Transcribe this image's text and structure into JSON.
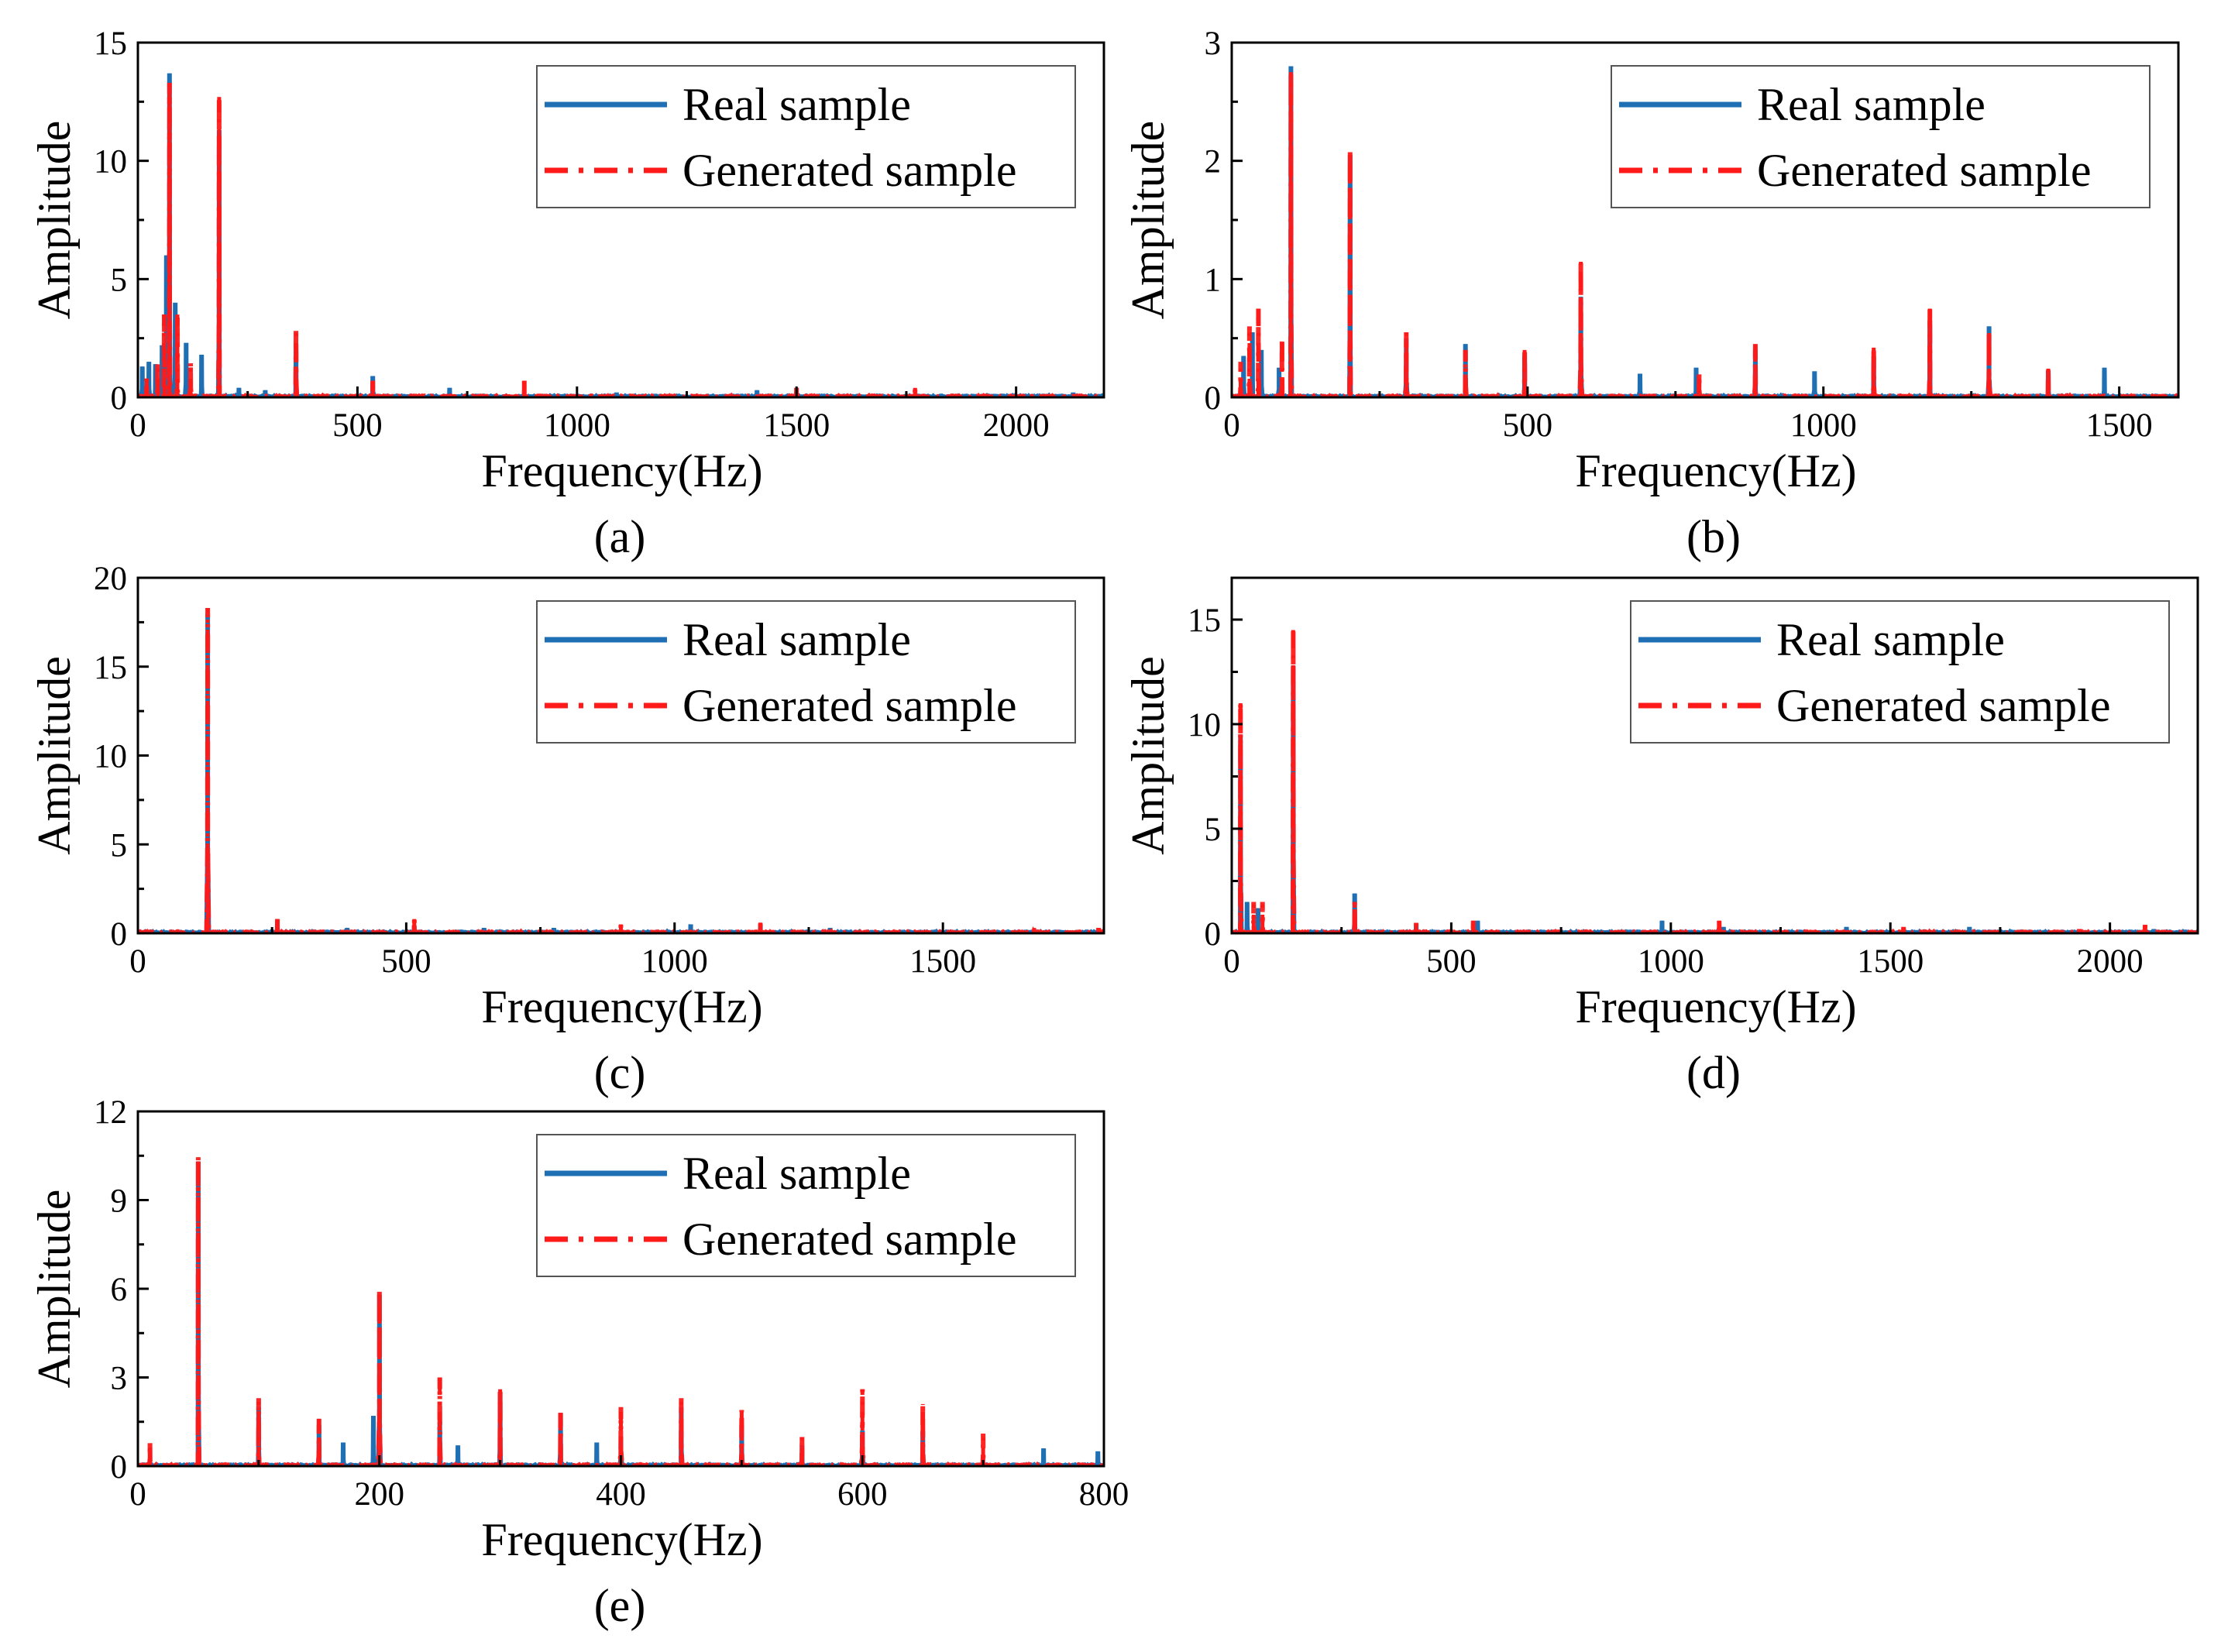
{
  "legend_labels": {
    "real": "Real sample",
    "generated": "Generated sample"
  },
  "colors": {
    "real": "#1f6fb4",
    "generated": "#ff1a1a",
    "axis": "#000000"
  },
  "chart_data": [
    {
      "panel": "(a)",
      "type": "line",
      "xlabel": "Frequency(Hz)",
      "ylabel": "Amplitude",
      "xlim": [
        0,
        2200
      ],
      "ylim": [
        0,
        15
      ],
      "xticks": [
        0,
        500,
        1000,
        1500,
        2000
      ],
      "yticks": [
        0,
        5,
        10,
        15
      ],
      "legend": "top-right",
      "grid": false,
      "series": [
        {
          "name": "Real sample",
          "peaks": [
            [
              10,
              1.3
            ],
            [
              25,
              1.5
            ],
            [
              40,
              1.4
            ],
            [
              55,
              2.2
            ],
            [
              65,
              6
            ],
            [
              72,
              13.7
            ],
            [
              85,
              4
            ],
            [
              110,
              2.3
            ],
            [
              145,
              1.8
            ],
            [
              185,
              11.3
            ],
            [
              230,
              0.4
            ],
            [
              290,
              0.3
            ],
            [
              360,
              2.0
            ],
            [
              535,
              0.9
            ],
            [
              710,
              0.4
            ],
            [
              1090,
              0.2
            ],
            [
              1410,
              0.3
            ],
            [
              2130,
              0.2
            ]
          ]
        },
        {
          "name": "Generated sample",
          "peaks": [
            [
              20,
              0.8
            ],
            [
              45,
              1.5
            ],
            [
              60,
              3.5
            ],
            [
              72,
              13.3
            ],
            [
              90,
              3.5
            ],
            [
              120,
              1.5
            ],
            [
              185,
              12.7
            ],
            [
              360,
              2.9
            ],
            [
              535,
              0.7
            ],
            [
              880,
              0.7
            ],
            [
              1500,
              0.4
            ],
            [
              1770,
              0.4
            ]
          ]
        }
      ]
    },
    {
      "panel": "(b)",
      "type": "line",
      "xlabel": "Frequency(Hz)",
      "ylabel": "Amplitude",
      "xlim": [
        0,
        1600
      ],
      "ylim": [
        0,
        3
      ],
      "xticks": [
        0,
        500,
        1000,
        1500
      ],
      "yticks": [
        0,
        1,
        2,
        3
      ],
      "legend": "top-right",
      "grid": false,
      "series": [
        {
          "name": "Real sample",
          "peaks": [
            [
              20,
              0.35
            ],
            [
              35,
              0.55
            ],
            [
              50,
              0.4
            ],
            [
              80,
              0.25
            ],
            [
              100,
              2.8
            ],
            [
              200,
              2.05
            ],
            [
              295,
              0.5
            ],
            [
              395,
              0.45
            ],
            [
              495,
              0.35
            ],
            [
              590,
              0.85
            ],
            [
              690,
              0.2
            ],
            [
              785,
              0.25
            ],
            [
              885,
              0.4
            ],
            [
              985,
              0.22
            ],
            [
              1085,
              0.35
            ],
            [
              1180,
              0.65
            ],
            [
              1280,
              0.6
            ],
            [
              1380,
              0.22
            ],
            [
              1475,
              0.25
            ]
          ]
        },
        {
          "name": "Generated sample",
          "peaks": [
            [
              15,
              0.3
            ],
            [
              30,
              0.6
            ],
            [
              45,
              0.75
            ],
            [
              85,
              0.5
            ],
            [
              100,
              2.75
            ],
            [
              200,
              2.1
            ],
            [
              295,
              0.55
            ],
            [
              395,
              0.4
            ],
            [
              495,
              0.4
            ],
            [
              590,
              1.15
            ],
            [
              790,
              0.2
            ],
            [
              885,
              0.45
            ],
            [
              1085,
              0.42
            ],
            [
              1180,
              0.75
            ],
            [
              1280,
              0.55
            ],
            [
              1380,
              0.25
            ]
          ]
        }
      ]
    },
    {
      "panel": "(c)",
      "type": "line",
      "xlabel": "Frequency(Hz)",
      "ylabel": "Amplitude",
      "xlim": [
        0,
        1800
      ],
      "ylim": [
        0,
        20
      ],
      "xticks": [
        0,
        500,
        1000,
        1500
      ],
      "yticks": [
        0,
        5,
        10,
        15,
        20
      ],
      "legend": "top-right",
      "grid": false,
      "series": [
        {
          "name": "Real sample",
          "peaks": [
            [
              130,
              18
            ],
            [
              260,
              0.7
            ],
            [
              390,
              0.3
            ],
            [
              515,
              0.4
            ],
            [
              645,
              0.3
            ],
            [
              775,
              0.3
            ],
            [
              1030,
              0.5
            ],
            [
              1160,
              0.4
            ],
            [
              1290,
              0.3
            ]
          ]
        },
        {
          "name": "Generated sample",
          "peaks": [
            [
              130,
              18.3
            ],
            [
              260,
              0.8
            ],
            [
              515,
              0.8
            ],
            [
              900,
              0.5
            ],
            [
              1160,
              0.6
            ],
            [
              1670,
              0.3
            ],
            [
              1790,
              0.3
            ]
          ]
        }
      ]
    },
    {
      "panel": "(d)",
      "type": "line",
      "xlabel": "Frequency(Hz)",
      "ylabel": "Amplitude",
      "xlim": [
        0,
        2200
      ],
      "ylim": [
        0,
        17
      ],
      "xticks": [
        0,
        500,
        1000,
        1500,
        2000
      ],
      "yticks": [
        0,
        5,
        10,
        15
      ],
      "legend": "top-right",
      "grid": false,
      "series": [
        {
          "name": "Real sample",
          "peaks": [
            [
              20,
              9.5
            ],
            [
              35,
              1.5
            ],
            [
              60,
              1.2
            ],
            [
              140,
              12.8
            ],
            [
              280,
              1.9
            ],
            [
              420,
              0.4
            ],
            [
              560,
              0.6
            ],
            [
              980,
              0.6
            ],
            [
              1120,
              0.3
            ],
            [
              1400,
              0.3
            ],
            [
              1680,
              0.3
            ],
            [
              2100,
              0.2
            ]
          ]
        },
        {
          "name": "Generated sample",
          "peaks": [
            [
              20,
              11
            ],
            [
              50,
              1.5
            ],
            [
              70,
              1.5
            ],
            [
              140,
              14.5
            ],
            [
              280,
              1.5
            ],
            [
              420,
              0.5
            ],
            [
              550,
              0.6
            ],
            [
              1110,
              0.6
            ],
            [
              1530,
              0.3
            ],
            [
              1930,
              0.2
            ],
            [
              2080,
              0.4
            ]
          ]
        }
      ]
    },
    {
      "panel": "(e)",
      "type": "line",
      "xlabel": "Frequency(Hz)",
      "ylabel": "Amplitude",
      "xlim": [
        0,
        800
      ],
      "ylim": [
        0,
        12
      ],
      "xticks": [
        0,
        200,
        400,
        600,
        800
      ],
      "yticks": [
        0,
        3,
        6,
        9,
        12
      ],
      "legend": "top-right",
      "grid": false,
      "series": [
        {
          "name": "Real sample",
          "peaks": [
            [
              50,
              10.3
            ],
            [
              100,
              2.0
            ],
            [
              150,
              1.4
            ],
            [
              170,
              0.8
            ],
            [
              195,
              1.7
            ],
            [
              200,
              5.8
            ],
            [
              250,
              1.5
            ],
            [
              265,
              0.7
            ],
            [
              300,
              2.5
            ],
            [
              350,
              1.8
            ],
            [
              380,
              0.8
            ],
            [
              400,
              1.0
            ],
            [
              450,
              2.0
            ],
            [
              500,
              1.4
            ],
            [
              550,
              0.7
            ],
            [
              600,
              1.2
            ],
            [
              650,
              1.2
            ],
            [
              750,
              0.6
            ],
            [
              795,
              0.5
            ]
          ]
        },
        {
          "name": "Generated sample",
          "peaks": [
            [
              10,
              0.8
            ],
            [
              50,
              10.5
            ],
            [
              100,
              2.3
            ],
            [
              150,
              1.6
            ],
            [
              200,
              6.0
            ],
            [
              250,
              3.0
            ],
            [
              300,
              2.6
            ],
            [
              350,
              1.8
            ],
            [
              400,
              2.0
            ],
            [
              450,
              2.3
            ],
            [
              500,
              1.9
            ],
            [
              550,
              1.0
            ],
            [
              600,
              2.6
            ],
            [
              650,
              2.1
            ],
            [
              700,
              1.1
            ]
          ]
        }
      ]
    }
  ]
}
